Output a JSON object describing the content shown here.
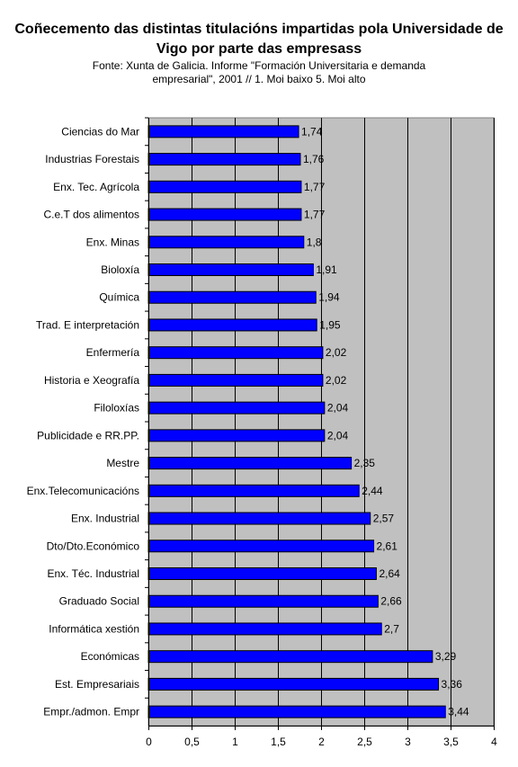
{
  "chart_data": {
    "type": "bar",
    "orientation": "horizontal",
    "title": "Coñecemento das distintas titulacións impartidas pola Universidade de Vigo por parte das empresass",
    "subtitle": "Fonte: Xunta de Galicia. Informe \"Formación Universitaria e demanda empresarial\", 2001 // 1. Moi baixo 5. Moi alto",
    "categories": [
      "Ciencias do Mar",
      "Industrias Forestais",
      "Enx. Tec. Agrícola",
      "C.e.T dos alimentos",
      "Enx. Minas",
      "Bioloxía",
      "Química",
      "Trad. E interpretación",
      "Enfermería",
      "Historia e Xeografía",
      "Filoloxías",
      "Publicidade e RR.PP.",
      "Mestre",
      "Enx.Telecomunicacións",
      "Enx. Industrial",
      "Dto/Dto.Económico",
      "Enx. Téc. Industrial",
      "Graduado Social",
      "Informática xestión",
      "Económicas",
      "Est. Empresariais",
      "Empr./admon. Empr"
    ],
    "values": [
      1.74,
      1.76,
      1.77,
      1.77,
      1.8,
      1.91,
      1.94,
      1.95,
      2.02,
      2.02,
      2.04,
      2.04,
      2.35,
      2.44,
      2.57,
      2.61,
      2.64,
      2.66,
      2.7,
      3.29,
      3.36,
      3.44
    ],
    "value_labels": [
      "1,74",
      "1,76",
      "1,77",
      "1,77",
      "1,8",
      "1,91",
      "1,94",
      "1,95",
      "2,02",
      "2,02",
      "2,04",
      "2,04",
      "2,35",
      "2,44",
      "2,57",
      "2,61",
      "2,64",
      "2,66",
      "2,7",
      "3,29",
      "3,36",
      "3,44"
    ],
    "xlim": [
      0,
      4
    ],
    "x_ticks": [
      0,
      0.5,
      1,
      1.5,
      2,
      2.5,
      3,
      3.5,
      4
    ],
    "x_tick_labels": [
      "0",
      "0,5",
      "1",
      "1,5",
      "2",
      "2,5",
      "3",
      "3,5",
      "4"
    ],
    "xlabel": "",
    "ylabel": "",
    "grid": "vertical gridlines",
    "legend": "none",
    "colors": {
      "bar_fill": "#0000ff",
      "bar_stroke": "#000000",
      "plot_background": "#c0c0c0",
      "gridline": "#000000"
    }
  }
}
